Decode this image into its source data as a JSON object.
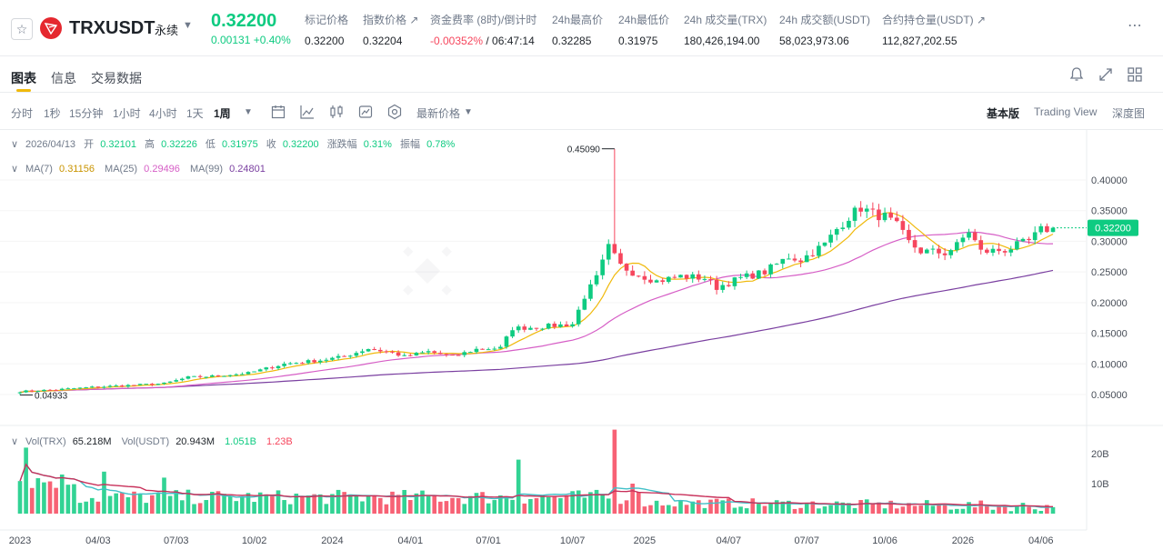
{
  "header": {
    "symbol": "TRXUSDT",
    "contract_type": "永续",
    "last_price": "0.32200",
    "change": "0.00131 +0.40%",
    "stats": [
      {
        "label": "标记价格",
        "value": "0.32200",
        "x": 335
      },
      {
        "label": "指数价格 ↗",
        "value": "0.32204",
        "x": 399
      },
      {
        "label": "资金费率 (8时)/倒计时",
        "value_neg": "-0.00352%",
        "value": " / 06:47:14",
        "x": 473
      },
      {
        "label": "24h最高价",
        "value": "0.32285",
        "x": 607
      },
      {
        "label": "24h最低价",
        "value": "0.31975",
        "x": 680
      },
      {
        "label": "24h 成交量(TRX)",
        "value": "180,426,194.00",
        "x": 752
      },
      {
        "label": "24h 成交额(USDT)",
        "value": "58,023,973.06",
        "x": 857
      },
      {
        "label": "合约持仓量(USDT) ↗",
        "value": "112,827,202.55",
        "x": 970
      }
    ]
  },
  "tabs": [
    "图表",
    "信息",
    "交易数据"
  ],
  "toolbar": {
    "intervals": [
      "分时",
      "1秒",
      "15分钟",
      "1小时",
      "4小时",
      "1天",
      "1周"
    ],
    "active_interval": "1周",
    "price_type": "最新价格",
    "views": [
      "基本版",
      "Trading View",
      "深度图"
    ],
    "active_view": "基本版"
  },
  "legend": {
    "date": "2026/04/13",
    "open_label": "开",
    "open": "0.32101",
    "high_label": "高",
    "high": "0.32226",
    "low_label": "低",
    "low": "0.31975",
    "close_label": "收",
    "close": "0.32200",
    "chg_label": "涨跌幅",
    "chg": "0.31%",
    "amp_label": "振幅",
    "amp": "0.78%",
    "ma7_label": "MA(7)",
    "ma7": "0.31156",
    "ma25_label": "MA(25)",
    "ma25": "0.29496",
    "ma99_label": "MA(99)",
    "ma99": "0.24801",
    "vol_label": "Vol(TRX)",
    "vol": "65.218M",
    "volu_label": "Vol(USDT)",
    "volu": "20.943M",
    "vol_ma1": "1.051B",
    "vol_ma2": "1.23B"
  },
  "colors": {
    "up": "#0ecb81",
    "down": "#f6465d",
    "ma7": "#f0b90b",
    "ma25": "#d65ec6",
    "ma99": "#7a3fa0"
  },
  "chart_data": {
    "type": "candlestick",
    "y_ticks": [
      "0.40000",
      "0.35000",
      "0.30000",
      "0.25000",
      "0.20000",
      "0.15000",
      "0.10000",
      "0.05000"
    ],
    "y_tick_values": [
      0.4,
      0.35,
      0.3,
      0.25,
      0.2,
      0.15,
      0.1,
      0.05
    ],
    "ylim": [
      0.02,
      0.44
    ],
    "x_ticks": [
      "2023",
      "04/03",
      "07/03",
      "10/02",
      "2024",
      "04/01",
      "07/01",
      "10/07",
      "2025",
      "04/07",
      "07/07",
      "10/06",
      "2026",
      "04/06"
    ],
    "x_tick_weeks": [
      0,
      13,
      26,
      39,
      52,
      65,
      78,
      92,
      104,
      118,
      131,
      144,
      157,
      170
    ],
    "max_label": "0.45090",
    "max_value": 0.4509,
    "min_label": "0.04933",
    "min_value": 0.04933,
    "current_price": "0.32200",
    "current_value": 0.322,
    "vol_ticks": [
      "20B",
      "10B"
    ],
    "vol_tick_values": [
      20,
      10
    ],
    "vol_max": 28,
    "anchors": [
      [
        0,
        0.055
      ],
      [
        6,
        0.058
      ],
      [
        12,
        0.062
      ],
      [
        18,
        0.065
      ],
      [
        24,
        0.068
      ],
      [
        28,
        0.078
      ],
      [
        32,
        0.08
      ],
      [
        38,
        0.085
      ],
      [
        44,
        0.1
      ],
      [
        50,
        0.106
      ],
      [
        54,
        0.112
      ],
      [
        58,
        0.125
      ],
      [
        62,
        0.118
      ],
      [
        64,
        0.112
      ],
      [
        68,
        0.12
      ],
      [
        72,
        0.112
      ],
      [
        76,
        0.124
      ],
      [
        80,
        0.126
      ],
      [
        82,
        0.158
      ],
      [
        86,
        0.16
      ],
      [
        92,
        0.165
      ],
      [
        94,
        0.21
      ],
      [
        96,
        0.24
      ],
      [
        98,
        0.29
      ],
      [
        100,
        0.26
      ],
      [
        102,
        0.25
      ],
      [
        106,
        0.235
      ],
      [
        110,
        0.243
      ],
      [
        114,
        0.24
      ],
      [
        116,
        0.225
      ],
      [
        120,
        0.24
      ],
      [
        124,
        0.25
      ],
      [
        128,
        0.275
      ],
      [
        130,
        0.27
      ],
      [
        134,
        0.295
      ],
      [
        136,
        0.32
      ],
      [
        138,
        0.34
      ],
      [
        140,
        0.355
      ],
      [
        142,
        0.345
      ],
      [
        144,
        0.34
      ],
      [
        146,
        0.325
      ],
      [
        148,
        0.298
      ],
      [
        150,
        0.284
      ],
      [
        154,
        0.281
      ],
      [
        156,
        0.293
      ],
      [
        158,
        0.317
      ],
      [
        160,
        0.283
      ],
      [
        164,
        0.286
      ],
      [
        168,
        0.3
      ],
      [
        170,
        0.318
      ],
      [
        172,
        0.322
      ]
    ],
    "spike_week": 99,
    "total_weeks": 173
  }
}
